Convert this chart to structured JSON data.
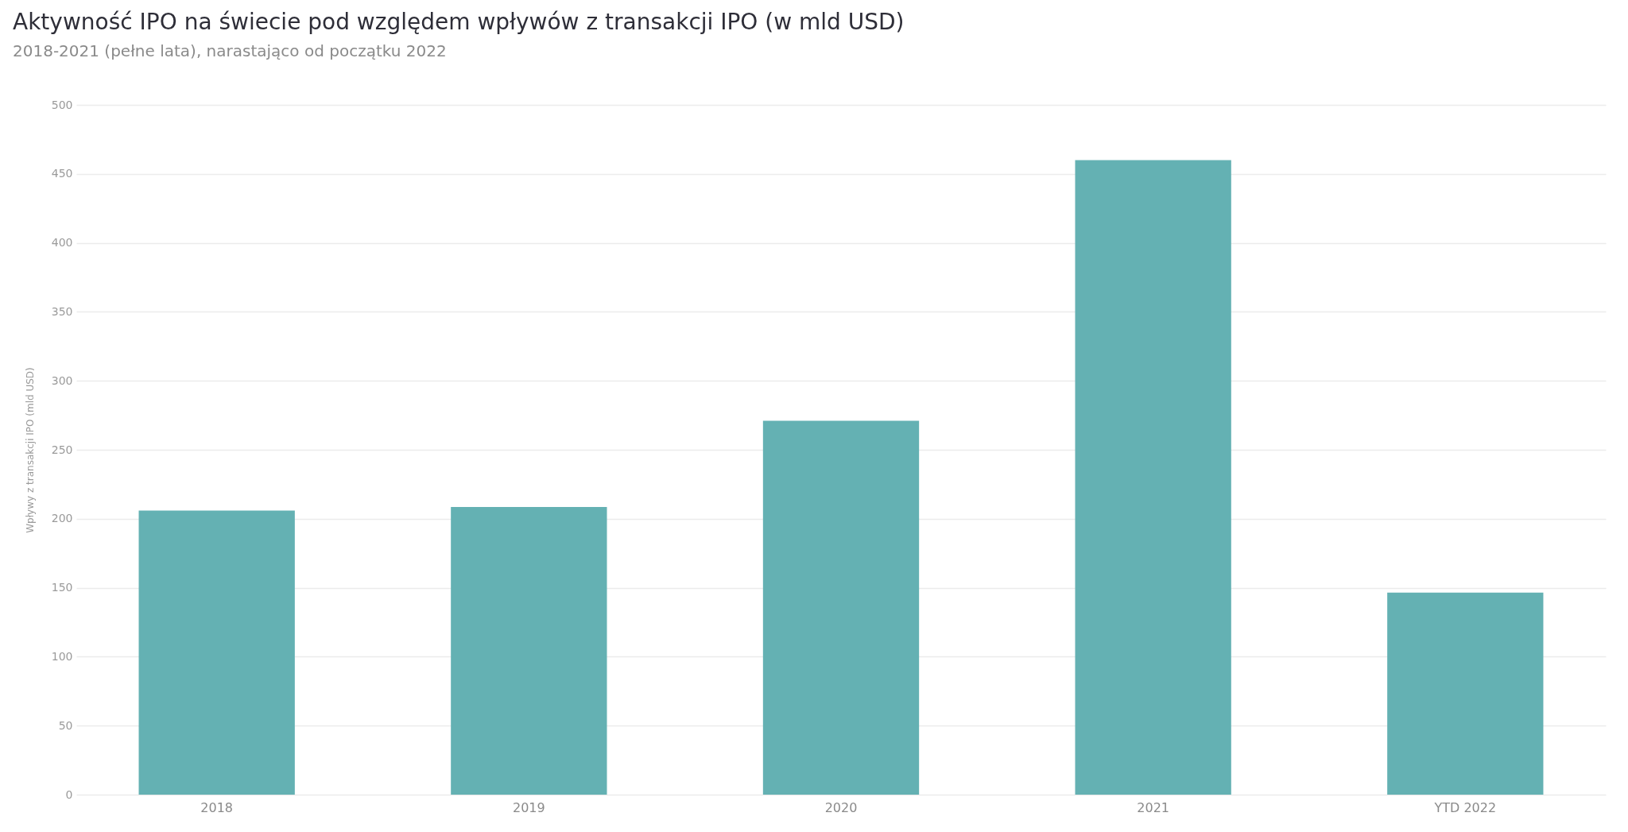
{
  "chart_data": {
    "type": "bar",
    "title": "Aktywność IPO na świecie pod względem wpływów z transakcji IPO (w mld USD)",
    "subtitle": "2018-2021 (pełne lata), narastająco od początku 2022",
    "ylabel": "Wpływy z transakcji IPO (mld USD)",
    "categories": [
      "2018",
      "2019",
      "2020",
      "2021",
      "YTD 2022"
    ],
    "values": [
      206,
      208.5,
      271,
      460,
      146.5
    ],
    "color": "#64b1b3",
    "ylim": [
      0,
      500
    ],
    "yticks": [
      0,
      50,
      100,
      150,
      200,
      250,
      300,
      350,
      400,
      450,
      500
    ],
    "grid": "y"
  }
}
